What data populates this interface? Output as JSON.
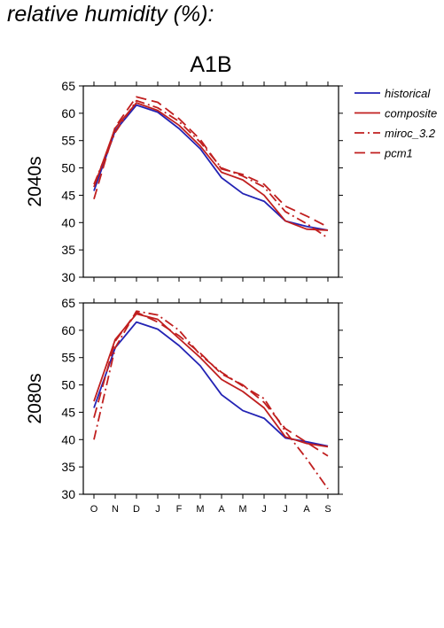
{
  "page": {
    "title": "relative humidity (%):"
  },
  "colors": {
    "historical": "#2323b4",
    "scenario": "#c01f1f",
    "axis": "#000000",
    "background": "#ffffff"
  },
  "chart_data": {
    "type": "line",
    "title": "A1B",
    "categories": [
      "O",
      "N",
      "D",
      "J",
      "F",
      "M",
      "A",
      "M",
      "J",
      "J",
      "A",
      "S"
    ],
    "ylim": [
      30,
      65
    ],
    "yticks": [
      30,
      35,
      40,
      45,
      50,
      55,
      60,
      65
    ],
    "grid": false,
    "legend_placement": "right",
    "legend": [
      {
        "name": "historical",
        "color": "#2323b4",
        "dash": "solid"
      },
      {
        "name": "composite",
        "color": "#c01f1f",
        "dash": "solid"
      },
      {
        "name": "miroc_3.2",
        "color": "#c01f1f",
        "dash": "dashdot"
      },
      {
        "name": "pcm1",
        "color": "#c01f1f",
        "dash": "dash"
      }
    ],
    "panels": [
      {
        "ylabel": "2040s",
        "series": [
          {
            "name": "historical",
            "values": [
              45.8,
              56.8,
              61.5,
              60.2,
              57.2,
              53.5,
              48.2,
              45.3,
              43.9,
              40.3,
              39.3,
              38.6
            ]
          },
          {
            "name": "composite",
            "values": [
              46.5,
              57.3,
              61.9,
              60.5,
              57.8,
              54.0,
              49.2,
              47.8,
              45.0,
              40.3,
              38.8,
              38.6
            ]
          },
          {
            "name": "miroc_3.2",
            "values": [
              47.0,
              56.5,
              62.3,
              61.0,
              58.5,
              54.7,
              50.0,
              48.5,
              46.5,
              42.0,
              39.8,
              37.2
            ]
          },
          {
            "name": "pcm1",
            "values": [
              44.3,
              57.5,
              63.0,
              62.0,
              59.0,
              55.2,
              49.8,
              48.8,
              47.0,
              43.0,
              41.2,
              39.2
            ]
          }
        ]
      },
      {
        "ylabel": "2080s",
        "series": [
          {
            "name": "historical",
            "values": [
              45.8,
              56.8,
              61.5,
              60.2,
              57.2,
              53.5,
              48.2,
              45.3,
              43.9,
              40.3,
              39.6,
              38.8
            ]
          },
          {
            "name": "composite",
            "values": [
              47.0,
              58.3,
              63.0,
              62.0,
              58.5,
              55.0,
              51.0,
              48.8,
              45.8,
              40.5,
              39.3,
              38.7
            ]
          },
          {
            "name": "miroc_3.2",
            "values": [
              40.0,
              56.8,
              63.5,
              62.8,
              60.0,
              55.5,
              52.3,
              49.8,
              47.5,
              41.5,
              36.5,
              31.0
            ]
          },
          {
            "name": "pcm1",
            "values": [
              44.0,
              58.0,
              63.3,
              61.5,
              59.0,
              55.8,
              52.0,
              50.0,
              46.8,
              42.0,
              39.5,
              37.0
            ]
          }
        ]
      }
    ]
  }
}
